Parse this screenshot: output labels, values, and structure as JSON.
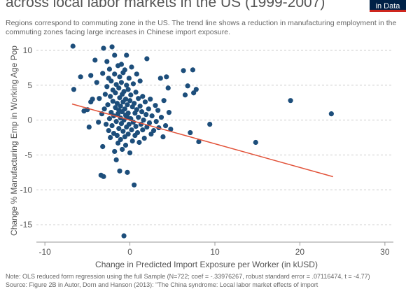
{
  "header": {
    "title": "across local labor markets in the US (1999-2007)",
    "subtitle": "Regions correspond to commuting zone in the US. The trend line shows a reduction in manufacturing employment in the commuting zones facing large increases in Chinese import exposure.",
    "logo_text": "in Data"
  },
  "footer": {
    "note": "Note: OLS reduced form regression using the full Sample (N=722; coef = -.33976267, robust standard error = .07116474, t = -4.77)",
    "source": "Source: Figure 2B in Autor, Dorn and Hanson (2013): \"The China syndrome: Local labor market effects of import"
  },
  "colors": {
    "dots": "#1d4e7b",
    "trend": "#e2533a",
    "grid": "#cccccc",
    "axis": "#999999",
    "logo_bg": "#002147",
    "logo_accent": "#ce261e"
  },
  "chart_data": {
    "type": "scatter",
    "xlabel": "Change in Predicted Import Exposure per Worker (in kUSD)",
    "ylabel": "Change % Manufacturing Emp in Working Age Pop",
    "xlim": [
      -11,
      31
    ],
    "ylim": [
      -17.5,
      11
    ],
    "x_ticks": [
      -10,
      0,
      10,
      20,
      30
    ],
    "y_ticks": [
      10,
      5,
      0,
      -5,
      -10,
      -15
    ],
    "grid": "horizontal dashed",
    "trend_line": {
      "x": [
        -6.8,
        23.9
      ],
      "y": [
        2.31,
        -8.12
      ]
    },
    "points": [
      {
        "x": -6.7,
        "y": 10.6
      },
      {
        "x": -6.6,
        "y": 4.4
      },
      {
        "x": -5.8,
        "y": 6.2
      },
      {
        "x": -5.4,
        "y": 1.3
      },
      {
        "x": -5.0,
        "y": 1.5
      },
      {
        "x": -4.8,
        "y": -1.0
      },
      {
        "x": -4.6,
        "y": 2.6
      },
      {
        "x": -4.6,
        "y": 6.4
      },
      {
        "x": -4.4,
        "y": 3.0
      },
      {
        "x": -4.1,
        "y": 8.6
      },
      {
        "x": -3.9,
        "y": 5.4
      },
      {
        "x": -3.7,
        "y": -0.3
      },
      {
        "x": -3.6,
        "y": 3.1
      },
      {
        "x": -3.4,
        "y": -7.9
      },
      {
        "x": -3.3,
        "y": 0.9
      },
      {
        "x": -3.2,
        "y": 6.7
      },
      {
        "x": -3.2,
        "y": -3.8
      },
      {
        "x": -3.1,
        "y": 10.3
      },
      {
        "x": -3.1,
        "y": -8.1
      },
      {
        "x": -3.0,
        "y": 1.6
      },
      {
        "x": -2.9,
        "y": 3.7
      },
      {
        "x": -2.8,
        "y": -0.6
      },
      {
        "x": -2.7,
        "y": 4.8
      },
      {
        "x": -2.7,
        "y": 8.4
      },
      {
        "x": -2.6,
        "y": 2.2
      },
      {
        "x": -2.5,
        "y": -1.5
      },
      {
        "x": -2.5,
        "y": 6.0
      },
      {
        "x": -2.4,
        "y": 0.2
      },
      {
        "x": -2.4,
        "y": 7.3
      },
      {
        "x": -2.3,
        "y": 3.4
      },
      {
        "x": -2.3,
        "y": -2.5
      },
      {
        "x": -2.2,
        "y": 1.1
      },
      {
        "x": -2.2,
        "y": 5.6
      },
      {
        "x": -2.1,
        "y": 10.5
      },
      {
        "x": -2.1,
        "y": -0.8
      },
      {
        "x": -2.0,
        "y": 2.7
      },
      {
        "x": -2.0,
        "y": 4.3
      },
      {
        "x": -1.9,
        "y": -1.9
      },
      {
        "x": -1.9,
        "y": 0.6
      },
      {
        "x": -1.8,
        "y": 6.6
      },
      {
        "x": -1.8,
        "y": 9.3
      },
      {
        "x": -1.8,
        "y": -4.5
      },
      {
        "x": -1.7,
        "y": 1.8
      },
      {
        "x": -1.7,
        "y": 3.9
      },
      {
        "x": -1.6,
        "y": -0.2
      },
      {
        "x": -1.6,
        "y": -5.7
      },
      {
        "x": -1.6,
        "y": 5.1
      },
      {
        "x": -1.5,
        "y": 2.4
      },
      {
        "x": -1.5,
        "y": -2.2
      },
      {
        "x": -1.4,
        "y": 7.8
      },
      {
        "x": -1.4,
        "y": 0.9
      },
      {
        "x": -1.4,
        "y": -3.3
      },
      {
        "x": -1.3,
        "y": 4.6
      },
      {
        "x": -1.3,
        "y": 1.4
      },
      {
        "x": -1.3,
        "y": -1.2
      },
      {
        "x": -1.2,
        "y": -7.3
      },
      {
        "x": -1.2,
        "y": 3.2
      },
      {
        "x": -1.2,
        "y": 6.2
      },
      {
        "x": -1.1,
        "y": 0.3
      },
      {
        "x": -1.1,
        "y": -2.8
      },
      {
        "x": -1.1,
        "y": 2.0
      },
      {
        "x": -1.0,
        "y": 5.4
      },
      {
        "x": -1.0,
        "y": -0.5
      },
      {
        "x": -1.0,
        "y": 8.0
      },
      {
        "x": -0.9,
        "y": -4.2
      },
      {
        "x": -0.9,
        "y": 1.2
      },
      {
        "x": -0.9,
        "y": 3.7
      },
      {
        "x": -0.8,
        "y": -1.6
      },
      {
        "x": -0.8,
        "y": 2.6
      },
      {
        "x": -0.8,
        "y": 6.8
      },
      {
        "x": -0.7,
        "y": -16.6
      },
      {
        "x": -0.7,
        "y": 0.0
      },
      {
        "x": -0.7,
        "y": 4.1
      },
      {
        "x": -0.6,
        "y": -2.4
      },
      {
        "x": -0.6,
        "y": 1.6
      },
      {
        "x": -0.6,
        "y": 7.2
      },
      {
        "x": -0.5,
        "y": -3.6
      },
      {
        "x": -0.5,
        "y": 3.0
      },
      {
        "x": -0.5,
        "y": 0.7
      },
      {
        "x": -0.4,
        "y": 5.0
      },
      {
        "x": -0.4,
        "y": -1.0
      },
      {
        "x": -0.4,
        "y": 9.3
      },
      {
        "x": -0.3,
        "y": 2.2
      },
      {
        "x": -0.3,
        "y": -7.5
      },
      {
        "x": -0.3,
        "y": 0.4
      },
      {
        "x": -0.2,
        "y": 4.4
      },
      {
        "x": -0.2,
        "y": -2.0
      },
      {
        "x": -0.2,
        "y": 1.0
      },
      {
        "x": -0.1,
        "y": 6.0
      },
      {
        "x": -0.1,
        "y": -0.6
      },
      {
        "x": 0.0,
        "y": 2.8
      },
      {
        "x": 0.0,
        "y": -4.7
      },
      {
        "x": 0.1,
        "y": 0.2
      },
      {
        "x": 0.1,
        "y": 3.6
      },
      {
        "x": 0.2,
        "y": -1.4
      },
      {
        "x": 0.2,
        "y": 7.6
      },
      {
        "x": 0.3,
        "y": 1.9
      },
      {
        "x": 0.3,
        "y": -3.0
      },
      {
        "x": 0.4,
        "y": 5.2
      },
      {
        "x": 0.4,
        "y": -0.3
      },
      {
        "x": 0.5,
        "y": 2.4
      },
      {
        "x": 0.5,
        "y": -9.3
      },
      {
        "x": 0.6,
        "y": 1.0
      },
      {
        "x": 0.6,
        "y": -2.2
      },
      {
        "x": 0.7,
        "y": 4.0
      },
      {
        "x": 0.7,
        "y": -0.9
      },
      {
        "x": 0.8,
        "y": 6.6
      },
      {
        "x": 0.8,
        "y": 1.5
      },
      {
        "x": 0.9,
        "y": -1.8
      },
      {
        "x": 1.0,
        "y": 3.1
      },
      {
        "x": 1.0,
        "y": 0.4
      },
      {
        "x": 1.1,
        "y": -3.2
      },
      {
        "x": 1.2,
        "y": 2.0
      },
      {
        "x": 1.2,
        "y": 5.6
      },
      {
        "x": 1.3,
        "y": -0.6
      },
      {
        "x": 1.4,
        "y": 1.2
      },
      {
        "x": 1.5,
        "y": -1.4
      },
      {
        "x": 1.5,
        "y": 3.4
      },
      {
        "x": 1.6,
        "y": 0.0
      },
      {
        "x": 1.7,
        "y": -2.6
      },
      {
        "x": 1.8,
        "y": 2.6
      },
      {
        "x": 1.9,
        "y": 0.8
      },
      {
        "x": 2.0,
        "y": -1.0
      },
      {
        "x": 2.0,
        "y": 8.8
      },
      {
        "x": 2.2,
        "y": 1.6
      },
      {
        "x": 2.3,
        "y": -0.4
      },
      {
        "x": 2.4,
        "y": 3.0
      },
      {
        "x": 2.5,
        "y": -2.0
      },
      {
        "x": 2.6,
        "y": 0.6
      },
      {
        "x": 2.8,
        "y": -1.5
      },
      {
        "x": 3.0,
        "y": 2.1
      },
      {
        "x": 3.1,
        "y": -0.2
      },
      {
        "x": 3.3,
        "y": 1.4
      },
      {
        "x": 3.4,
        "y": -1.1
      },
      {
        "x": 3.6,
        "y": 6.0
      },
      {
        "x": 3.7,
        "y": 0.4
      },
      {
        "x": 3.9,
        "y": -2.4
      },
      {
        "x": 4.0,
        "y": 2.8
      },
      {
        "x": 4.2,
        "y": -0.8
      },
      {
        "x": 4.3,
        "y": 6.2
      },
      {
        "x": 4.5,
        "y": 4.6
      },
      {
        "x": 4.6,
        "y": 1.1
      },
      {
        "x": 4.8,
        "y": -1.3
      },
      {
        "x": 6.3,
        "y": 7.1
      },
      {
        "x": 6.5,
        "y": 3.6
      },
      {
        "x": 6.8,
        "y": 4.9
      },
      {
        "x": 7.1,
        "y": -1.8
      },
      {
        "x": 7.4,
        "y": 7.2
      },
      {
        "x": 7.5,
        "y": 3.9
      },
      {
        "x": 7.8,
        "y": 4.4
      },
      {
        "x": 8.1,
        "y": -3.1
      },
      {
        "x": 9.4,
        "y": -0.6
      },
      {
        "x": 14.8,
        "y": -3.2
      },
      {
        "x": 18.9,
        "y": 2.8
      },
      {
        "x": 23.7,
        "y": 0.9
      }
    ]
  }
}
